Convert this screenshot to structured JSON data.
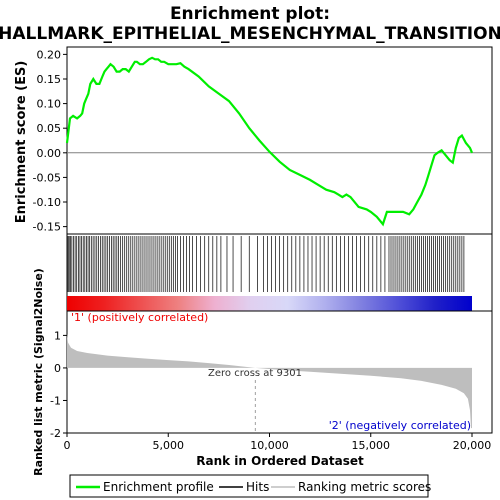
{
  "chart_data": {
    "title_line1": "Enrichment plot:",
    "title_line2": "HALLMARK_EPITHELIAL_MESENCHYMAL_TRANSITION",
    "type": "line",
    "colors": {
      "es_line": "#00ee00",
      "hits": "#000000",
      "metric_fill": "#bebebe",
      "pos_band": "#ee0000",
      "neg_band": "#0000cc"
    },
    "enrichment_panel": {
      "ylabel": "Enrichment score (ES)",
      "ylim": [
        -0.165,
        0.215
      ],
      "yticks": [
        "0.20",
        "0.15",
        "0.10",
        "0.05",
        "0.00",
        "-0.05",
        "-0.10",
        "-0.15"
      ],
      "ytick_values": [
        0.2,
        0.15,
        0.1,
        0.05,
        0.0,
        -0.05,
        -0.1,
        -0.15
      ],
      "series": [
        {
          "x": [
            0,
            150,
            300,
            500,
            650,
            750,
            850,
            950,
            1050,
            1150,
            1300,
            1450,
            1600,
            1750,
            1850,
            1950,
            2050,
            2150,
            2300,
            2450,
            2600,
            2750,
            2900,
            3050,
            3200,
            3350,
            3450,
            3600,
            3750,
            3900,
            4050,
            4200,
            4350,
            4500,
            4650,
            4800,
            5000,
            5200,
            5400,
            5600,
            5800,
            6000,
            6500,
            7000,
            7500,
            8000,
            8500,
            9000,
            9500,
            10000,
            10500,
            11000,
            11500,
            12000,
            12400,
            12800,
            13200,
            13400,
            13600,
            13800,
            14000,
            14400,
            14800,
            15000,
            15300,
            15600,
            15800,
            16000,
            16300,
            16600,
            16900,
            17100,
            17300,
            17500,
            17700,
            17850,
            18000,
            18150,
            18300,
            18500,
            18700,
            18900,
            19050,
            19200,
            19350,
            19500,
            19700,
            19900,
            20000
          ],
          "y": [
            0.02,
            0.07,
            0.075,
            0.07,
            0.075,
            0.08,
            0.1,
            0.11,
            0.12,
            0.14,
            0.15,
            0.14,
            0.14,
            0.155,
            0.165,
            0.17,
            0.175,
            0.18,
            0.175,
            0.165,
            0.165,
            0.17,
            0.17,
            0.165,
            0.175,
            0.185,
            0.185,
            0.18,
            0.18,
            0.185,
            0.19,
            0.193,
            0.19,
            0.19,
            0.185,
            0.185,
            0.18,
            0.18,
            0.18,
            0.182,
            0.175,
            0.17,
            0.155,
            0.135,
            0.12,
            0.105,
            0.08,
            0.05,
            0.025,
            0.002,
            -0.018,
            -0.035,
            -0.045,
            -0.055,
            -0.065,
            -0.075,
            -0.08,
            -0.085,
            -0.09,
            -0.085,
            -0.09,
            -0.11,
            -0.115,
            -0.12,
            -0.13,
            -0.145,
            -0.12,
            -0.12,
            -0.12,
            -0.12,
            -0.125,
            -0.115,
            -0.1,
            -0.085,
            -0.065,
            -0.045,
            -0.025,
            -0.005,
            0.0,
            0.005,
            -0.005,
            -0.015,
            -0.02,
            0.01,
            0.03,
            0.035,
            0.02,
            0.01,
            0.0
          ]
        }
      ]
    },
    "hits_panel": {
      "hit_ranks": [
        20,
        60,
        110,
        170,
        240,
        320,
        400,
        480,
        560,
        640,
        720,
        800,
        880,
        960,
        1040,
        1120,
        1200,
        1290,
        1380,
        1470,
        1560,
        1650,
        1740,
        1830,
        1920,
        2010,
        2100,
        2190,
        2280,
        2370,
        2460,
        2550,
        2650,
        2750,
        2850,
        2950,
        3050,
        3150,
        3250,
        3350,
        3450,
        3550,
        3650,
        3750,
        3850,
        3950,
        4050,
        4150,
        4250,
        4350,
        4450,
        4550,
        4650,
        4750,
        4850,
        4950,
        5050,
        5150,
        5250,
        5350,
        5450,
        5600,
        5750,
        5900,
        6050,
        6200,
        6400,
        6600,
        6800,
        7000,
        7200,
        7400,
        7600,
        7900,
        8200,
        8600,
        9000,
        9400,
        9700,
        9900,
        10100,
        10300,
        10500,
        10700,
        10900,
        11100,
        11300,
        11500,
        11700,
        11900,
        12100,
        12300,
        12500,
        12700,
        12900,
        13100,
        13300,
        13500,
        13700,
        13900,
        14100,
        14300,
        14500,
        14700,
        14900,
        15100,
        15300,
        15500,
        15700,
        15900,
        16000,
        16100,
        16200,
        16300,
        16400,
        16500,
        16600,
        16700,
        16800,
        16900,
        17000,
        17100,
        17200,
        17300,
        17400,
        17500,
        17600,
        17700,
        17800,
        17900,
        18000,
        18100,
        18200,
        18300,
        18400,
        18500,
        18600,
        18700,
        18800,
        18900,
        19000,
        19100,
        19200,
        19300,
        19400,
        19500,
        19600
      ],
      "band_gradient": [
        "#ee0000",
        "#ee2020",
        "#ee5050",
        "#ee8080",
        "#eeb0d0",
        "#e0d0f0",
        "#d8d8f8",
        "#b0b0ee",
        "#8080e0",
        "#5050d8",
        "#2020c8",
        "#0000cc"
      ],
      "pos_label": "'1' (positively correlated)",
      "neg_label": "'2' (negatively correlated)"
    },
    "metric_panel": {
      "ylabel": "Ranked list metric (Signal2Noise)",
      "ylim": [
        -2,
        1.75
      ],
      "yticks": [
        "1",
        "0",
        "-1",
        "-2"
      ],
      "ytick_values": [
        1,
        0,
        -1,
        -2
      ],
      "zero_cross_label": "Zero cross at 9301",
      "zero_cross_rank": 9301,
      "profile": {
        "x": [
          0,
          50,
          200,
          500,
          1000,
          2000,
          3000,
          4000,
          5000,
          6000,
          7000,
          8000,
          9301,
          10500,
          12000,
          13500,
          15000,
          16500,
          17500,
          18500,
          19200,
          19600,
          19800,
          19900,
          19950,
          20000
        ],
        "y": [
          1.05,
          0.78,
          0.62,
          0.52,
          0.46,
          0.38,
          0.33,
          0.28,
          0.24,
          0.2,
          0.15,
          0.09,
          0.0,
          -0.06,
          -0.12,
          -0.18,
          -0.24,
          -0.32,
          -0.4,
          -0.52,
          -0.64,
          -0.78,
          -0.95,
          -1.3,
          -1.85,
          -1.85
        ]
      }
    },
    "xaxis": {
      "xlabel": "Rank in Ordered Dataset",
      "xlim": [
        0,
        20000
      ],
      "xticks": [
        "0",
        "5,000",
        "10,000",
        "15,000",
        "20,000"
      ],
      "xtick_values": [
        0,
        5000,
        10000,
        15000,
        20000
      ]
    },
    "legend": {
      "placement": "bottom",
      "items": [
        {
          "label": "Enrichment profile",
          "color": "#00ee00"
        },
        {
          "label": "Hits",
          "color": "#000000"
        },
        {
          "label": "Ranking metric scores",
          "color": "#bebebe"
        }
      ]
    }
  }
}
